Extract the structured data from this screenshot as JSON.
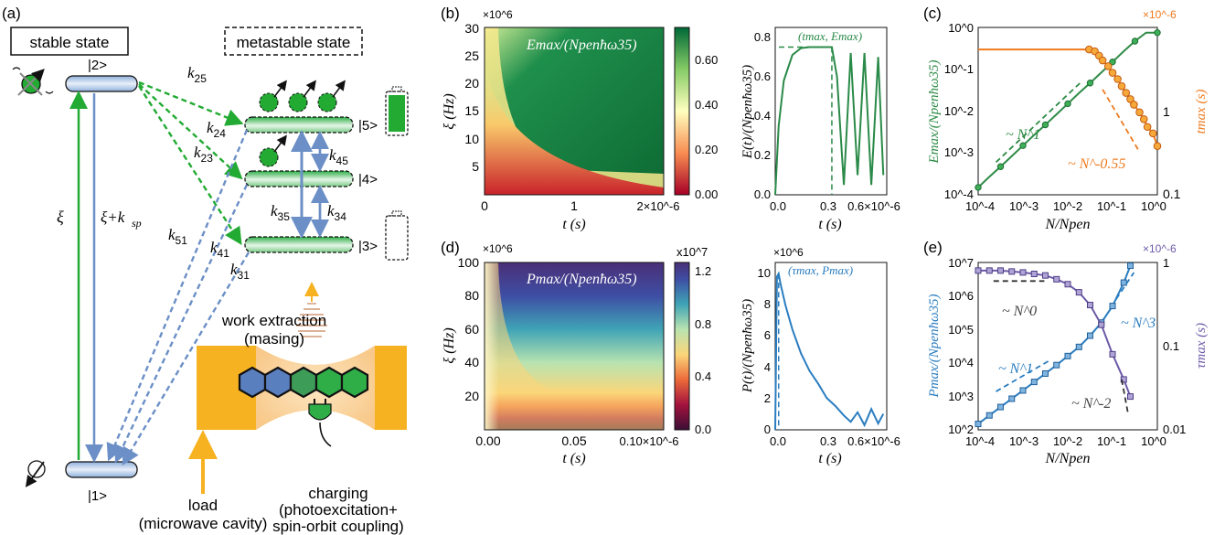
{
  "panel_labels": {
    "a": "(a)",
    "b": "(b)",
    "c": "(c)",
    "d": "(d)",
    "e": "(e)"
  },
  "panel_a": {
    "stable_label": "stable state",
    "metastable_label": "metastable state",
    "levels": {
      "l1": "|1>",
      "l2": "|2>",
      "l3": "|3>",
      "l4": "|4>",
      "l5": "|5>"
    },
    "pump_label": "ξ",
    "decay_label": "ξ+k",
    "decay_sub": "sp",
    "rates": [
      {
        "main": "k",
        "sub": "25"
      },
      {
        "main": "k",
        "sub": "24"
      },
      {
        "main": "k",
        "sub": "23"
      },
      {
        "main": "k",
        "sub": "45"
      },
      {
        "main": "k",
        "sub": "35"
      },
      {
        "main": "k",
        "sub": "34"
      },
      {
        "main": "k",
        "sub": "51"
      },
      {
        "main": "k",
        "sub": "41"
      },
      {
        "main": "k",
        "sub": "31"
      }
    ],
    "work_label_1": "work extraction",
    "work_label_2": "(masing)",
    "load_label_1": "load",
    "load_label_2": "(microwave cavity)",
    "charging_label_1": "charging",
    "charging_label_2": "(photoexcitation+",
    "charging_label_3": "spin-orbit coupling)",
    "colors": {
      "green": "#22aa33",
      "blue": "#6b8fc6",
      "orange": "#f6b221",
      "cavity": "#fbd9a8"
    }
  },
  "panel_b": {
    "heatmap_title": "Emax/(Npenħω35)",
    "y_exp": "×10^6",
    "x_exp": "2×10^-6",
    "x_ticks": [
      "0",
      "1"
    ],
    "y_ticks": [
      "5",
      "10",
      "15",
      "20",
      "25",
      "30"
    ],
    "colorbar_ticks": [
      "0.00",
      "0.20",
      "0.40",
      "0.60"
    ],
    "xlabel": "t (s)",
    "ylabel": "ξ (Hz)",
    "line_annotation": "(tmax, Emax)",
    "line_x_ticks": [
      "0.0",
      "0.3",
      "0.6×10^-6"
    ],
    "line_y_ticks": [
      "0.0",
      "0.2",
      "0.4",
      "0.6",
      "0.8"
    ],
    "line_ylabel": "E(t)/(Npenħω35)",
    "line_xlabel": "t (s)"
  },
  "panel_c": {
    "left_ylabel": "Emax/(Npenħω35)",
    "right_ylabel": "tmax (s)",
    "xlabel": "N/Npen",
    "right_exp": "×10^-6",
    "left_ticks": [
      "10^-4",
      "10^-3",
      "10^-2",
      "10^-1",
      "10^0"
    ],
    "right_ticks": [
      "0.1",
      "1"
    ],
    "x_ticks": [
      "10^-4",
      "10^-3",
      "10^-2",
      "10^-1",
      "10^0"
    ],
    "scaling_1": "~ N^1",
    "scaling_2": "~ N^-0.55",
    "colors": {
      "green": "#2e8b46",
      "orange": "#ee7a1e"
    }
  },
  "panel_d": {
    "heatmap_title": "Pmax/(Npenħω35)",
    "y_exp": "×10^6",
    "x_exp": "0.10×10^-6",
    "cbar_exp": "x10^7",
    "x_ticks": [
      "0.00",
      "0.05"
    ],
    "y_ticks": [
      "20",
      "40",
      "60",
      "80",
      "100"
    ],
    "colorbar_ticks": [
      "0.0",
      "0.4",
      "0.8",
      "1.2"
    ],
    "xlabel": "t (s)",
    "ylabel": "ξ (Hz)",
    "line_annotation": "(τmax, Pmax)",
    "line_x_ticks": [
      "0.0",
      "0.3",
      "0.6×10^-6"
    ],
    "line_y_ticks": [
      "0",
      "2",
      "4",
      "6",
      "8",
      "10"
    ],
    "line_exp": "×10^6",
    "line_ylabel": "P(t)/(Npenħω35)",
    "line_xlabel": "t (s)"
  },
  "panel_e": {
    "left_ylabel": "Pmax/(Npenħω35)",
    "right_ylabel": "τmax (s)",
    "xlabel": "N/Npen",
    "right_exp": "×10^-6",
    "left_ticks": [
      "10^2",
      "10^3",
      "10^4",
      "10^5",
      "10^6",
      "10^7"
    ],
    "right_ticks": [
      "0.01",
      "0.1",
      "1"
    ],
    "x_ticks": [
      "10^-4",
      "10^-3",
      "10^-2",
      "10^-1",
      "10^0"
    ],
    "scaling_0": "~ N^0",
    "scaling_1": "~ N^1",
    "scaling_3": "~ N^3",
    "scaling_m2": "~ N^-2",
    "colors": {
      "blue": "#2a7dc0",
      "purple": "#6d5aa8"
    }
  },
  "chart_data": [
    {
      "type": "heatmap",
      "id": "b-heatmap",
      "xlabel": "t (s)",
      "ylabel": "ξ (Hz)",
      "xlim": [
        0,
        2e-06
      ],
      "ylim": [
        0,
        30000000.0
      ],
      "colorbar": [
        0,
        0.75
      ]
    },
    {
      "type": "line",
      "id": "b-line",
      "xlabel": "t (s)",
      "ylabel": "E(t)/(Npenħω35)",
      "xlim": [
        0,
        6.5e-07
      ],
      "ylim": [
        0,
        0.85
      ],
      "x": [
        0,
        0.02,
        0.05,
        0.1,
        0.15,
        0.2,
        0.25,
        0.3,
        0.33,
        0.36,
        0.4,
        0.44,
        0.48,
        0.52,
        0.56,
        0.6,
        0.63
      ],
      "y": [
        0,
        0.35,
        0.58,
        0.71,
        0.745,
        0.75,
        0.75,
        0.75,
        0.75,
        0.6,
        0.05,
        0.72,
        0.1,
        0.72,
        0.05,
        0.7,
        0.1
      ]
    },
    {
      "type": "line",
      "id": "c-emax",
      "xlabel": "N/Npen",
      "ylabel": "Emax/(Npenħω35)",
      "log": true,
      "x": [
        0.0001,
        0.000178,
        0.000316,
        0.000562,
        0.001,
        0.00178,
        0.00316,
        0.00562,
        0.01,
        0.0178,
        0.0316,
        0.0562,
        0.1,
        0.178,
        0.316,
        0.562,
        1
      ],
      "y": [
        0.00015,
        0.00027,
        0.00047,
        0.00084,
        0.0015,
        0.0027,
        0.0047,
        0.0084,
        0.015,
        0.027,
        0.047,
        0.084,
        0.15,
        0.27,
        0.47,
        0.75,
        0.75
      ]
    },
    {
      "type": "line",
      "id": "c-tmax",
      "xlabel": "N/Npen",
      "ylabel": "tmax (s)",
      "log": true,
      "x": [
        0.0001,
        0.03,
        0.04,
        0.05,
        0.06,
        0.08,
        0.1,
        0.13,
        0.16,
        0.2,
        0.25,
        0.3,
        0.4,
        0.5,
        0.6,
        0.8,
        1
      ],
      "y": [
        1.05,
        1.05,
        1.02,
        0.95,
        0.88,
        0.8,
        0.72,
        0.65,
        0.58,
        0.52,
        0.47,
        0.43,
        0.38,
        0.34,
        0.3,
        0.27,
        0.22
      ]
    },
    {
      "type": "heatmap",
      "id": "d-heatmap",
      "xlabel": "t (s)",
      "ylabel": "ξ (Hz)",
      "xlim": [
        0,
        1e-07
      ],
      "ylim": [
        0,
        100000000.0
      ],
      "colorbar": [
        0,
        12000000.0
      ]
    },
    {
      "type": "line",
      "id": "d-line",
      "xlabel": "t (s)",
      "ylabel": "P(t)/(Npenħω35)",
      "xlim": [
        0,
        6.5e-07
      ],
      "ylim": [
        0,
        10500000.0
      ],
      "x": [
        0,
        0.01,
        0.02,
        0.03,
        0.06,
        0.1,
        0.15,
        0.2,
        0.25,
        0.3,
        0.35,
        0.4,
        0.44,
        0.48,
        0.52,
        0.56,
        0.6,
        0.63
      ],
      "y": [
        0,
        9.6,
        9.8,
        9.2,
        7.8,
        6.3,
        4.8,
        3.7,
        2.9,
        2.0,
        1.5,
        0.9,
        0.5,
        1.1,
        0.3,
        1.3,
        0.4,
        1.0
      ]
    },
    {
      "type": "line",
      "id": "e-pmax",
      "xlabel": "N/Npen",
      "ylabel": "Pmax/(Npenħω35)",
      "log": true,
      "x": [
        0.0001,
        0.000178,
        0.000316,
        0.000562,
        0.001,
        0.00178,
        0.00316,
        0.00562,
        0.01,
        0.0178,
        0.0316,
        0.0562,
        0.1,
        0.178,
        0.25
      ],
      "y": [
        150,
        270,
        480,
        850,
        1500,
        2700,
        4800,
        8600,
        16000,
        30000,
        65000,
        160000,
        500000,
        2500000,
        8000000
      ]
    },
    {
      "type": "line",
      "id": "e-taumax",
      "xlabel": "N/Npen",
      "ylabel": "τmax (s)",
      "log": true,
      "x": [
        0.0001,
        0.000178,
        0.000316,
        0.000562,
        0.001,
        0.00178,
        0.00316,
        0.00562,
        0.01,
        0.0178,
        0.0316,
        0.0562,
        0.1,
        0.178,
        0.25
      ],
      "y": [
        0.8,
        0.8,
        0.8,
        0.78,
        0.76,
        0.73,
        0.7,
        0.63,
        0.55,
        0.44,
        0.31,
        0.18,
        0.08,
        0.04,
        0.025
      ]
    }
  ]
}
